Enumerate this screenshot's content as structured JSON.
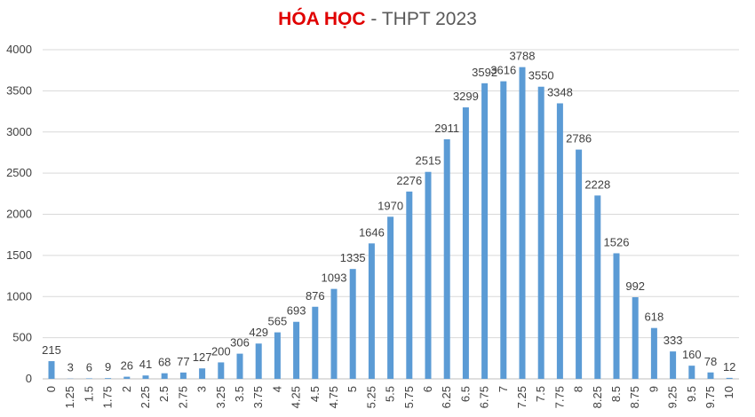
{
  "chart_data": {
    "type": "bar",
    "title_highlight": "HÓA HỌC",
    "title_rest": " - THPT 2023",
    "xlabel": "",
    "ylabel": "",
    "ylim": [
      0,
      4000
    ],
    "yticks": [
      0,
      500,
      1000,
      1500,
      2000,
      2500,
      3000,
      3500,
      4000
    ],
    "grid": true,
    "bar_color": "#5b9bd5",
    "categories": [
      "0",
      "1.25",
      "1.5",
      "1.75",
      "2",
      "2.25",
      "2.5",
      "2.75",
      "3",
      "3.25",
      "3.5",
      "3.75",
      "4",
      "4.25",
      "4.5",
      "4.75",
      "5",
      "5.25",
      "5.5",
      "5.75",
      "6",
      "6.25",
      "6.5",
      "6.75",
      "7",
      "7.25",
      "7.5",
      "7.75",
      "8",
      "8.25",
      "8.5",
      "8.75",
      "9",
      "9.25",
      "9.5",
      "9.75",
      "10"
    ],
    "values": [
      215,
      3,
      6,
      9,
      26,
      41,
      68,
      77,
      127,
      200,
      306,
      429,
      565,
      693,
      876,
      1093,
      1335,
      1646,
      1970,
      2276,
      2515,
      2911,
      3299,
      3592,
      3616,
      3788,
      3550,
      3348,
      2786,
      2228,
      1526,
      992,
      618,
      333,
      160,
      78,
      12
    ]
  }
}
